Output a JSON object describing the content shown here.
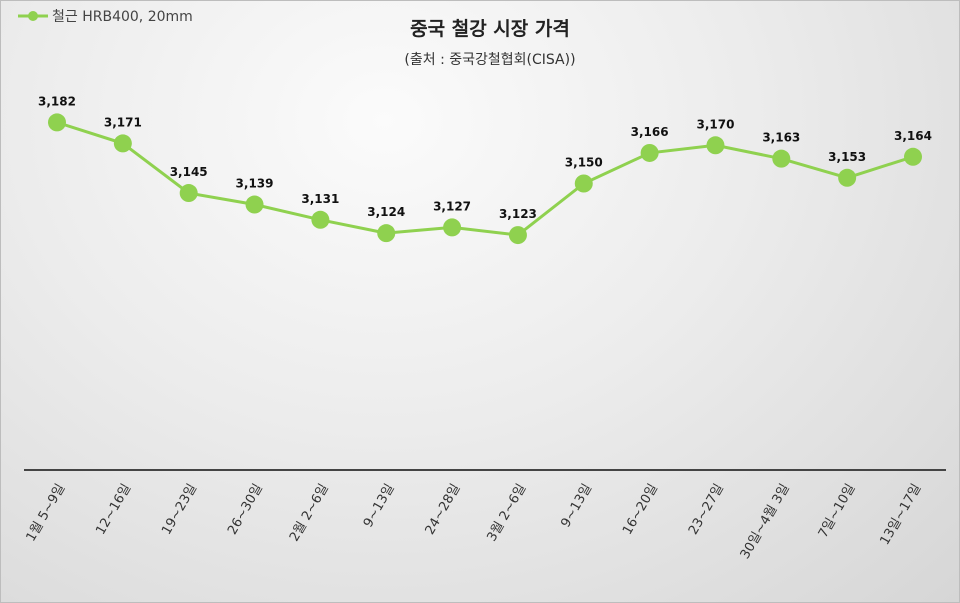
{
  "chart_data": {
    "type": "line",
    "title": "중국 철강 시장 가격",
    "subtitle": "(출처 : 중국강철협회(CISA))",
    "xlabel": "",
    "ylabel": "",
    "ylim": [
      3000,
      3200
    ],
    "grid": false,
    "legend_position": "top-left",
    "categories": [
      "1월 5~9일",
      "12~16일",
      "19~23일",
      "26~30일",
      "2월 2~6일",
      "9~13일",
      "24~28일",
      "3월 2~6일",
      "9~13일",
      "16~20일",
      "23~27일",
      "30일~4월 3일",
      "7일~10일",
      "13일~17일"
    ],
    "series": [
      {
        "name": "철근 HRB400, 20mm",
        "color": "#8fd14f",
        "values": [
          3182,
          3171,
          3145,
          3139,
          3131,
          3124,
          3127,
          3123,
          3150,
          3166,
          3170,
          3163,
          3153,
          3164
        ],
        "labels": [
          "3,182",
          "3,171",
          "3,145",
          "3,139",
          "3,131",
          "3,124",
          "3,127",
          "3,123",
          "3,150",
          "3,166",
          "3,170",
          "3,163",
          "3,153",
          "3,164"
        ]
      }
    ]
  }
}
